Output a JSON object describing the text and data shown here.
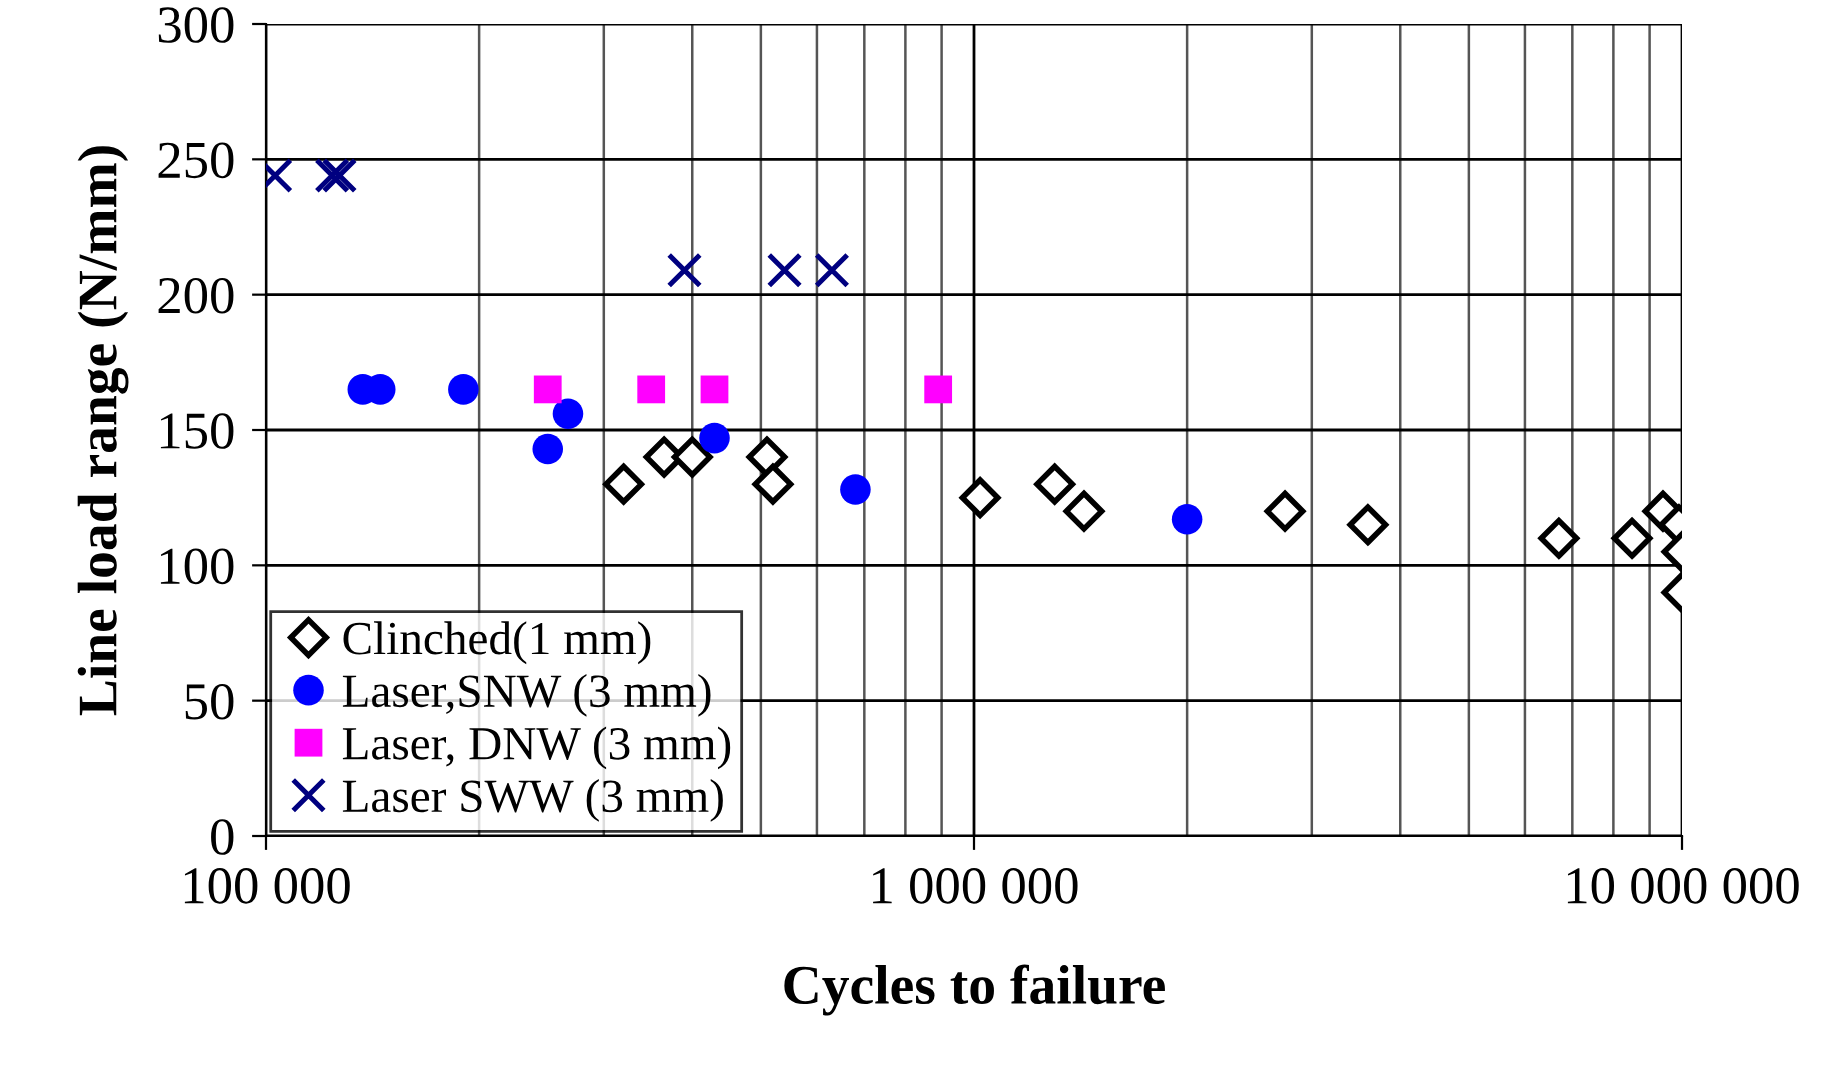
{
  "chart_data": {
    "type": "scatter",
    "xlabel": "Cycles to failure",
    "ylabel": "Line load range (N/mm)",
    "log": "x",
    "grid": true,
    "legend": "bottom left",
    "xlim": [
      100000,
      10000000
    ],
    "xticks": [
      {
        "value": 100000,
        "label": "100 000"
      },
      {
        "value": 1000000,
        "label": "1 000 000"
      },
      {
        "value": 10000000,
        "label": "10 000 000"
      }
    ],
    "ylim": [
      0,
      300
    ],
    "yticks": [
      0,
      50,
      100,
      150,
      200,
      250,
      300
    ],
    "series": [
      {
        "name": "Clinched(1 mm)",
        "color": "#000000",
        "marker": "diamond",
        "x": [
          320000,
          365000,
          400000,
          510000,
          520000,
          1020000,
          1300000,
          1430000,
          2750000,
          3600000,
          6700000,
          8500000,
          9400000,
          9900000,
          10000000,
          10000000
        ],
        "values": [
          130,
          140,
          140,
          140,
          130,
          125,
          130,
          120,
          120,
          115,
          110,
          110,
          120,
          115,
          105,
          90
        ]
      },
      {
        "name": "Laser,SNW (3 mm)",
        "color": "#0000ff",
        "marker": "circle",
        "x": [
          137000,
          145000,
          190000,
          250000,
          267000,
          430000,
          680000,
          2000000
        ],
        "values": [
          165,
          165,
          165,
          143,
          156,
          147,
          128,
          117
        ]
      },
      {
        "name": "Laser, DNW (3 mm)",
        "color": "#ff00ff",
        "marker": "square",
        "x": [
          250000,
          350000,
          430000,
          890000
        ],
        "values": [
          165,
          165,
          165,
          165
        ]
      },
      {
        "name": "Laser SWW (3 mm)",
        "color": "#000080",
        "marker": "cross",
        "x": [
          103000,
          124000,
          127000,
          390000,
          540000,
          630000
        ],
        "values": [
          244,
          244,
          244,
          209,
          209,
          209
        ]
      }
    ]
  }
}
